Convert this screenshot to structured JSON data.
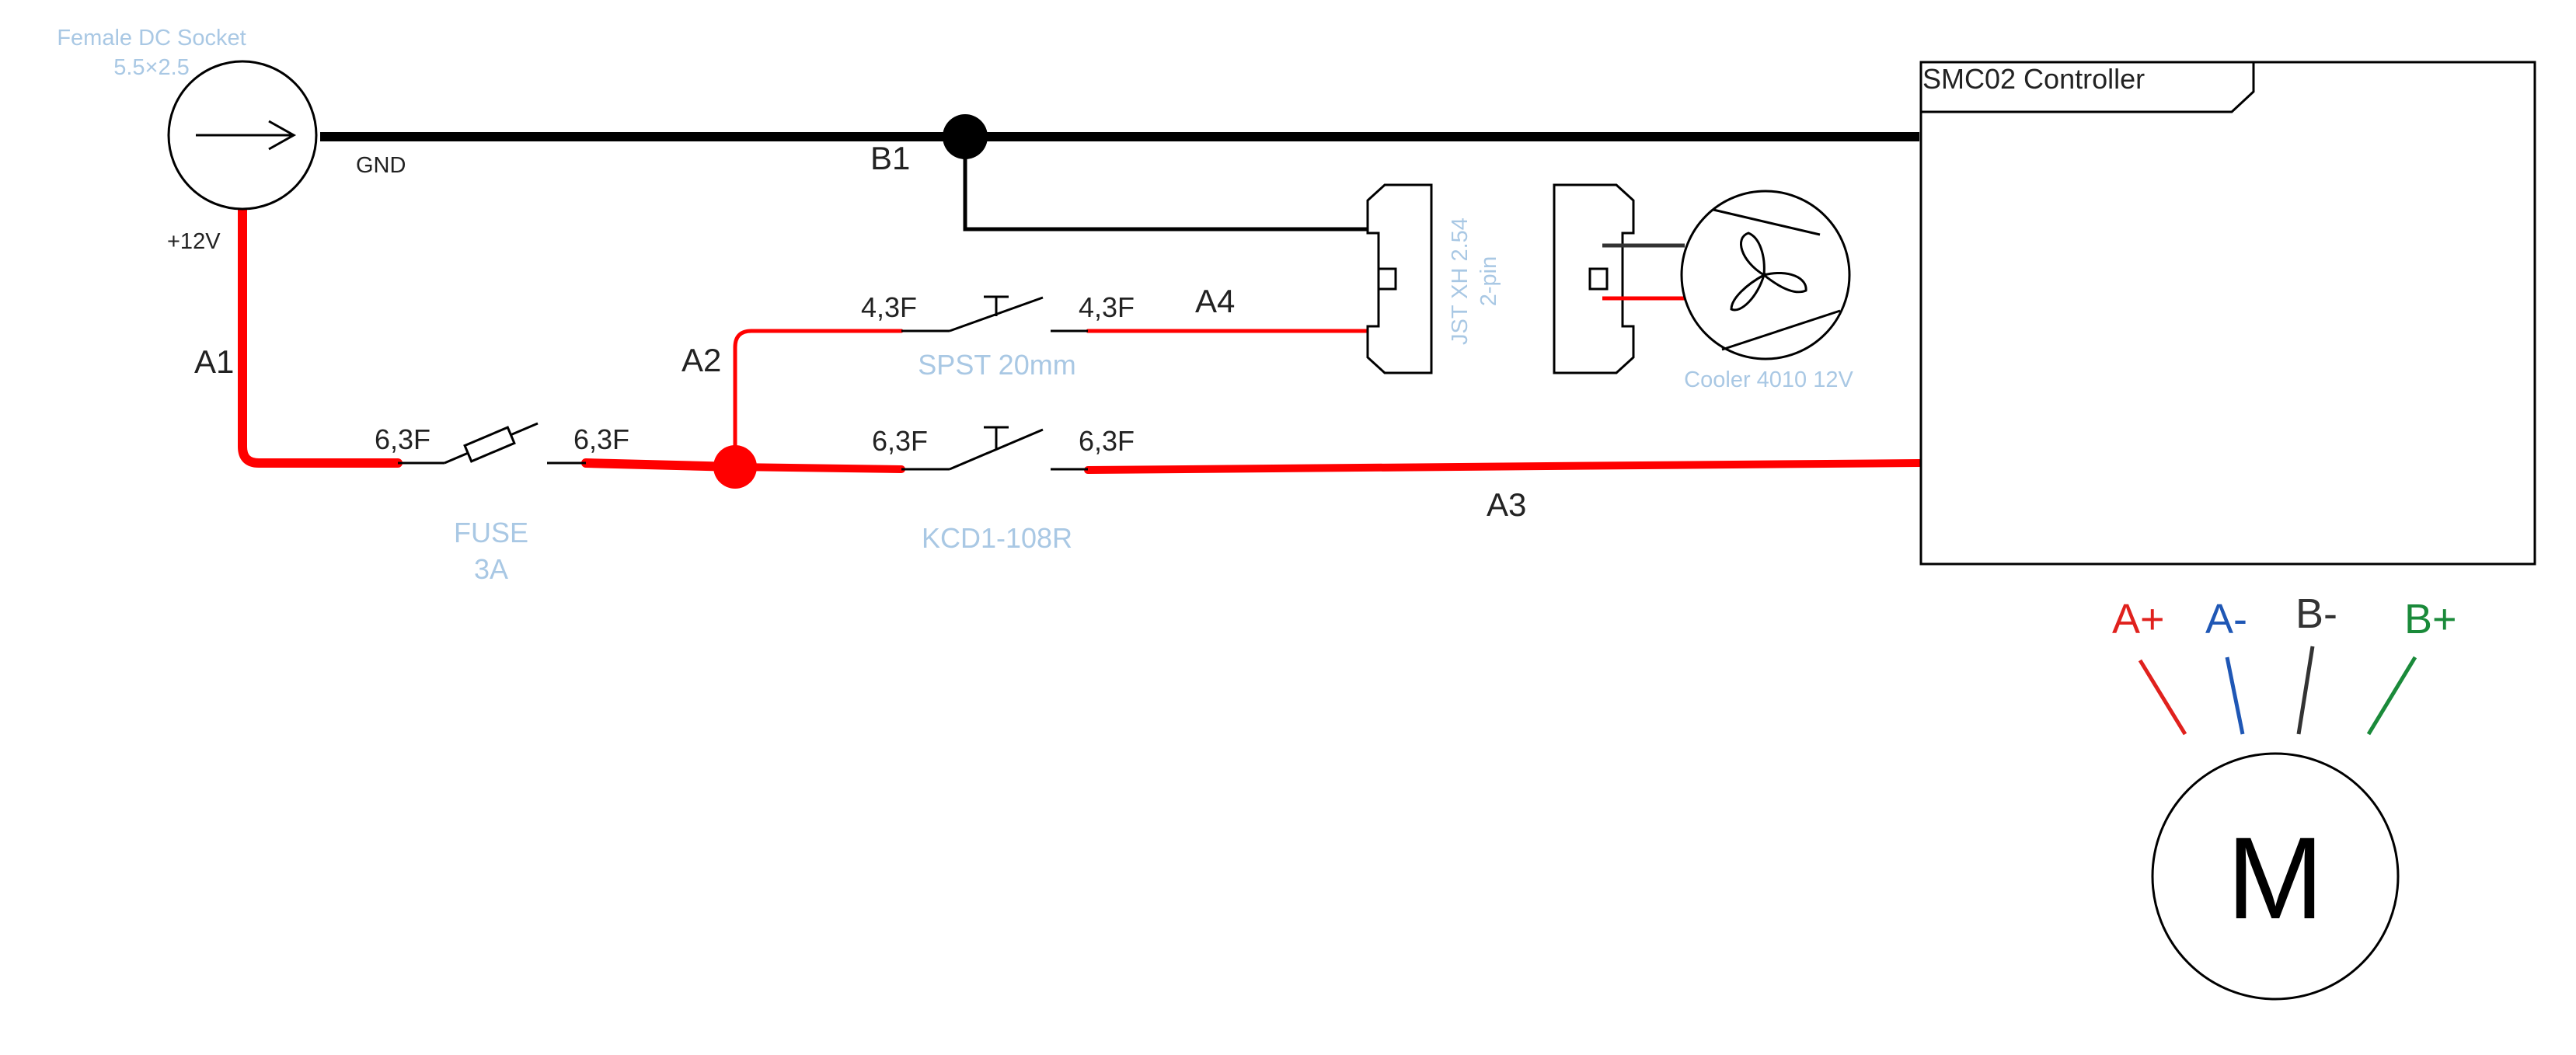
{
  "dc_socket": {
    "label_line1": "Female DC Socket",
    "label_line2": "5.5×2.5",
    "pos_label": "+12V",
    "gnd_label": "GND"
  },
  "nodes": {
    "b1": "B1"
  },
  "wires": {
    "a1": "A1",
    "a2": "A2",
    "a3": "A3",
    "a4": "A4"
  },
  "fuse": {
    "label_line1": "FUSE",
    "label_line2": "3A",
    "term_left": "6,3F",
    "term_right": "6,3F"
  },
  "spst": {
    "label": "SPST 20mm",
    "term_left": "4,3F",
    "term_right": "4,3F"
  },
  "kcd": {
    "label": "KCD1-108R",
    "term_left": "6,3F",
    "term_right": "6,3F"
  },
  "jst": {
    "label_line1": "JST XH 2.54",
    "label_line2": "2-pin"
  },
  "cooler": {
    "label": "Cooler 4010 12V"
  },
  "controller": {
    "title": "SMC02 Controller"
  },
  "motor": {
    "symbol": "M",
    "pins": [
      {
        "label": "A+",
        "color": "#e0211d"
      },
      {
        "label": "A-",
        "color": "#1f57b5"
      },
      {
        "label": "B-",
        "color": "#333333"
      },
      {
        "label": "B+",
        "color": "#1a8a3a"
      }
    ]
  },
  "colors": {
    "power_wire": "#ff0000",
    "ground_wire": "#000000",
    "component_label": "#a9c8e4"
  }
}
